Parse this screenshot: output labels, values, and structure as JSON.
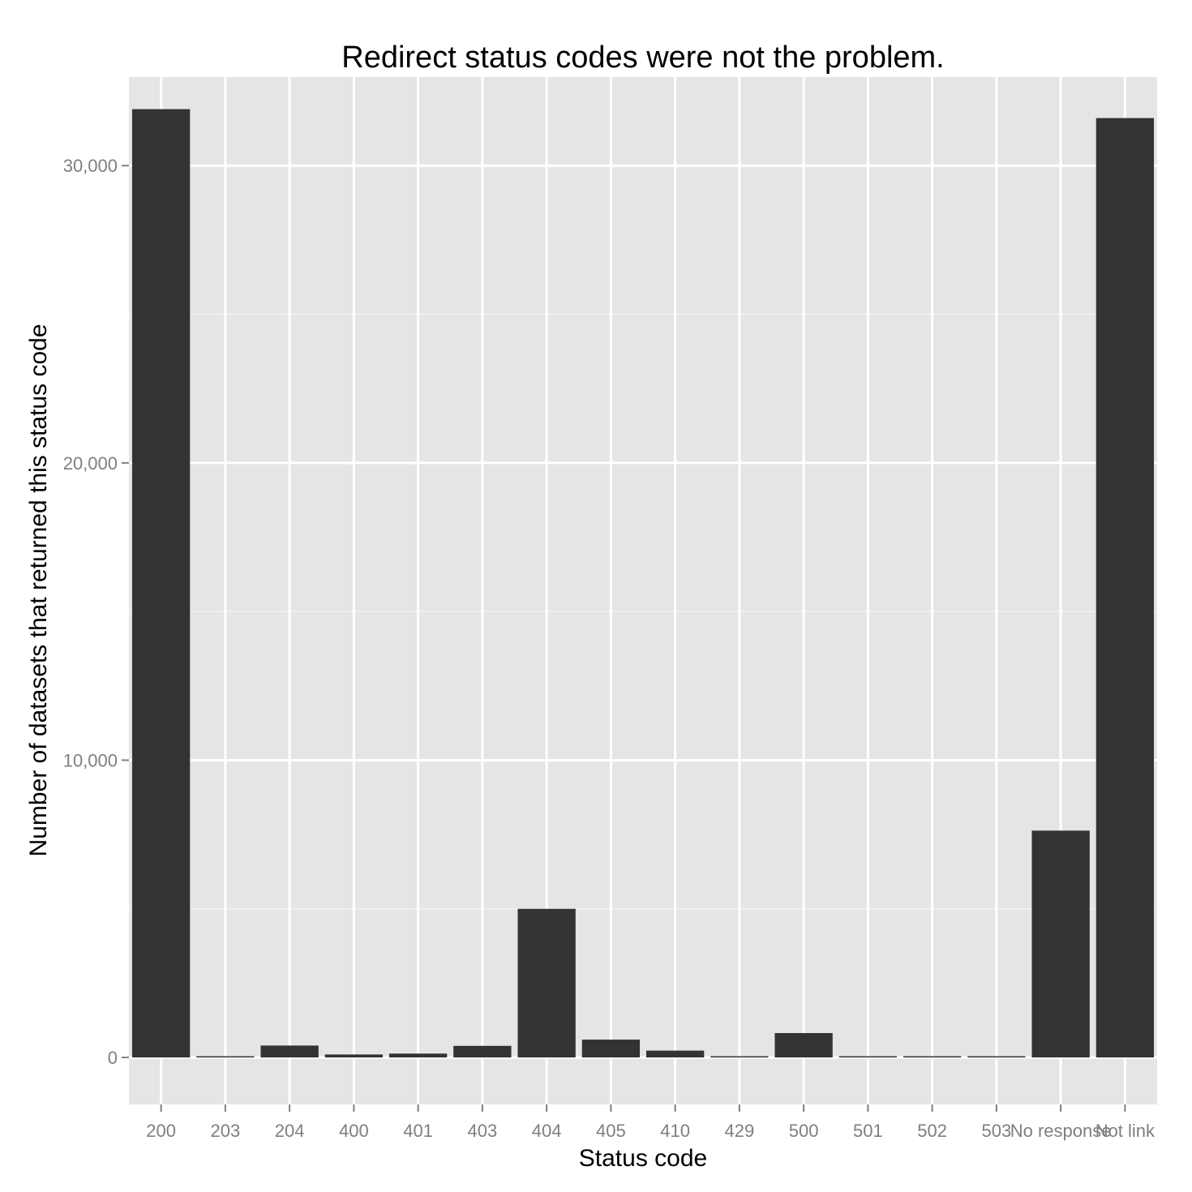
{
  "chart_data": {
    "type": "bar",
    "title": "Redirect status codes were not the problem.",
    "xlabel": "Status code",
    "ylabel": "Number of datasets that returned this status code",
    "categories": [
      "200",
      "203",
      "204",
      "400",
      "401",
      "403",
      "404",
      "405",
      "410",
      "429",
      "500",
      "501",
      "502",
      "503",
      "No response",
      "Not link"
    ],
    "values": [
      31900,
      2,
      400,
      100,
      130,
      390,
      5000,
      600,
      230,
      30,
      820,
      3,
      3,
      40,
      7630,
      31600
    ],
    "ylim": [
      -1580,
      32980
    ],
    "yticks": [
      0,
      10000,
      20000,
      30000
    ],
    "ytick_labels": [
      "0",
      "10,000",
      "20,000",
      "30,000"
    ],
    "grid": true,
    "legend": "none",
    "colors": {
      "panel": "#e5e5e5",
      "grid_major": "#ffffff",
      "grid_minor": "#f2f2f2",
      "bar": "#333333",
      "tick_label": "#7f7f7f",
      "tick_mark": "#7f7f7f"
    }
  }
}
